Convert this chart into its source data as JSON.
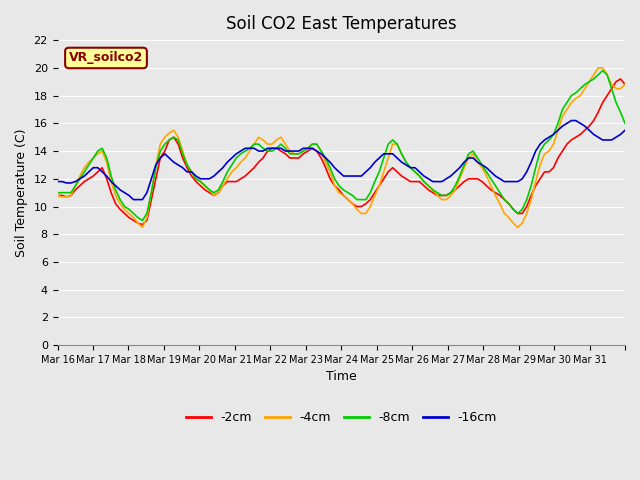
{
  "title": "Soil CO2 East Temperatures",
  "xlabel": "Time",
  "ylabel": "Soil Temperature (C)",
  "annotation_text": "VR_soilco2",
  "annotation_color": "#8B0000",
  "annotation_bg": "#FFFF99",
  "ylim": [
    0,
    22
  ],
  "yticks": [
    0,
    2,
    4,
    6,
    8,
    10,
    12,
    14,
    16,
    18,
    20,
    22
  ],
  "bg_color": "#E8E8E8",
  "series_colors": [
    "#FF0000",
    "#FFA500",
    "#00CC00",
    "#0000CC"
  ],
  "series_labels": [
    "-2cm",
    "-4cm",
    "-8cm",
    "-16cm"
  ],
  "x_tick_labels": [
    "Mar 16",
    "Mar 17",
    "Mar 18",
    "Mar 19",
    "Mar 20",
    "Mar 21",
    "Mar 22",
    "Mar 23",
    "Mar 24",
    "Mar 25",
    "Mar 26",
    "Mar 27",
    "Mar 28",
    "Mar 29",
    "Mar 30",
    "Mar 31"
  ],
  "num_days": 16,
  "points_per_day": 8,
  "series_2cm": [
    10.8,
    10.8,
    10.7,
    10.8,
    11.2,
    11.5,
    11.8,
    12.0,
    12.2,
    12.5,
    12.8,
    12.0,
    11.0,
    10.2,
    9.8,
    9.5,
    9.2,
    9.0,
    8.8,
    8.7,
    9.0,
    10.5,
    12.0,
    13.5,
    14.0,
    14.8,
    15.0,
    14.5,
    13.5,
    12.8,
    12.2,
    11.8,
    11.5,
    11.2,
    11.0,
    10.8,
    11.0,
    11.5,
    11.8,
    11.8,
    11.8,
    12.0,
    12.2,
    12.5,
    12.8,
    13.2,
    13.5,
    14.0,
    14.2,
    14.2,
    14.0,
    13.8,
    13.5,
    13.5,
    13.5,
    13.8,
    14.0,
    14.2,
    14.0,
    13.5,
    12.8,
    12.0,
    11.5,
    11.2,
    10.8,
    10.5,
    10.2,
    10.0,
    10.0,
    10.2,
    10.5,
    11.0,
    11.5,
    12.0,
    12.5,
    12.8,
    12.5,
    12.2,
    12.0,
    11.8,
    11.8,
    11.8,
    11.5,
    11.2,
    11.0,
    10.8,
    10.8,
    10.8,
    11.0,
    11.2,
    11.5,
    11.8,
    12.0,
    12.0,
    12.0,
    11.8,
    11.5,
    11.2,
    11.0,
    10.8,
    10.5,
    10.2,
    9.8,
    9.5,
    9.5,
    10.0,
    10.8,
    11.5,
    12.0,
    12.5,
    12.5,
    12.8,
    13.5,
    14.0,
    14.5,
    14.8,
    15.0,
    15.2,
    15.5,
    15.8,
    16.2,
    16.8,
    17.5,
    18.0,
    18.5,
    19.0,
    19.2,
    18.8
  ],
  "series_4cm": [
    10.8,
    10.7,
    10.7,
    10.8,
    11.5,
    12.2,
    12.8,
    13.2,
    13.5,
    13.8,
    14.0,
    13.2,
    11.8,
    10.8,
    10.2,
    9.8,
    9.5,
    9.2,
    8.8,
    8.5,
    9.2,
    11.0,
    13.0,
    14.5,
    15.0,
    15.3,
    15.5,
    15.0,
    14.0,
    13.0,
    12.5,
    12.0,
    11.8,
    11.5,
    11.2,
    10.8,
    11.0,
    11.5,
    12.0,
    12.5,
    12.8,
    13.2,
    13.5,
    14.0,
    14.5,
    15.0,
    14.8,
    14.5,
    14.5,
    14.8,
    15.0,
    14.5,
    14.0,
    13.8,
    13.8,
    14.0,
    14.2,
    14.5,
    14.5,
    14.0,
    13.2,
    12.5,
    11.5,
    11.0,
    10.8,
    10.5,
    10.2,
    9.8,
    9.5,
    9.5,
    10.0,
    10.8,
    11.5,
    12.5,
    13.5,
    14.5,
    14.5,
    13.8,
    13.2,
    12.8,
    12.5,
    12.2,
    11.8,
    11.5,
    11.2,
    10.8,
    10.5,
    10.5,
    10.8,
    11.2,
    12.0,
    12.8,
    13.5,
    13.8,
    13.2,
    12.8,
    12.2,
    11.5,
    10.8,
    10.2,
    9.5,
    9.2,
    8.8,
    8.5,
    8.8,
    9.5,
    10.5,
    11.8,
    13.0,
    13.8,
    14.0,
    14.5,
    15.5,
    16.5,
    17.0,
    17.5,
    17.8,
    18.0,
    18.5,
    19.0,
    19.5,
    20.0,
    20.0,
    19.5,
    18.8,
    18.5,
    18.5,
    18.8
  ],
  "series_8cm": [
    11.0,
    11.0,
    11.0,
    11.0,
    11.5,
    12.0,
    12.5,
    13.0,
    13.5,
    14.0,
    14.2,
    13.5,
    12.2,
    11.2,
    10.5,
    10.0,
    9.8,
    9.5,
    9.2,
    9.0,
    9.5,
    11.0,
    12.8,
    14.0,
    14.5,
    14.8,
    15.0,
    14.8,
    13.8,
    13.0,
    12.5,
    12.0,
    11.8,
    11.5,
    11.2,
    11.0,
    11.2,
    11.8,
    12.5,
    13.0,
    13.5,
    13.8,
    14.0,
    14.2,
    14.5,
    14.5,
    14.2,
    14.0,
    14.0,
    14.2,
    14.5,
    14.2,
    13.8,
    13.8,
    13.8,
    14.0,
    14.2,
    14.5,
    14.5,
    14.0,
    13.5,
    12.8,
    12.0,
    11.5,
    11.2,
    11.0,
    10.8,
    10.5,
    10.5,
    10.5,
    11.0,
    11.8,
    12.5,
    13.5,
    14.5,
    14.8,
    14.5,
    13.8,
    13.2,
    12.8,
    12.5,
    12.2,
    11.8,
    11.5,
    11.2,
    11.0,
    10.8,
    10.8,
    11.0,
    11.5,
    12.2,
    13.0,
    13.8,
    14.0,
    13.5,
    13.0,
    12.5,
    12.0,
    11.5,
    11.0,
    10.5,
    10.2,
    9.8,
    9.5,
    9.8,
    10.5,
    11.5,
    12.8,
    14.0,
    14.5,
    14.8,
    15.2,
    16.0,
    17.0,
    17.5,
    18.0,
    18.2,
    18.5,
    18.8,
    19.0,
    19.2,
    19.5,
    19.8,
    19.5,
    18.5,
    17.5,
    16.8,
    16.0
  ],
  "series_16cm": [
    11.8,
    11.8,
    11.7,
    11.7,
    11.8,
    12.0,
    12.2,
    12.5,
    12.8,
    12.8,
    12.5,
    12.2,
    11.8,
    11.5,
    11.2,
    11.0,
    10.8,
    10.5,
    10.5,
    10.5,
    11.0,
    12.0,
    13.0,
    13.5,
    13.8,
    13.5,
    13.2,
    13.0,
    12.8,
    12.5,
    12.5,
    12.2,
    12.0,
    12.0,
    12.0,
    12.2,
    12.5,
    12.8,
    13.2,
    13.5,
    13.8,
    14.0,
    14.2,
    14.2,
    14.2,
    14.0,
    14.0,
    14.2,
    14.2,
    14.2,
    14.2,
    14.0,
    14.0,
    14.0,
    14.0,
    14.2,
    14.2,
    14.2,
    14.0,
    13.8,
    13.5,
    13.2,
    12.8,
    12.5,
    12.2,
    12.2,
    12.2,
    12.2,
    12.2,
    12.5,
    12.8,
    13.2,
    13.5,
    13.8,
    13.8,
    13.8,
    13.5,
    13.2,
    13.0,
    12.8,
    12.8,
    12.5,
    12.2,
    12.0,
    11.8,
    11.8,
    11.8,
    12.0,
    12.2,
    12.5,
    12.8,
    13.2,
    13.5,
    13.5,
    13.2,
    13.0,
    12.8,
    12.5,
    12.2,
    12.0,
    11.8,
    11.8,
    11.8,
    11.8,
    12.0,
    12.5,
    13.2,
    14.0,
    14.5,
    14.8,
    15.0,
    15.2,
    15.5,
    15.8,
    16.0,
    16.2,
    16.2,
    16.0,
    15.8,
    15.5,
    15.2,
    15.0,
    14.8,
    14.8,
    14.8,
    15.0,
    15.2,
    15.5
  ]
}
